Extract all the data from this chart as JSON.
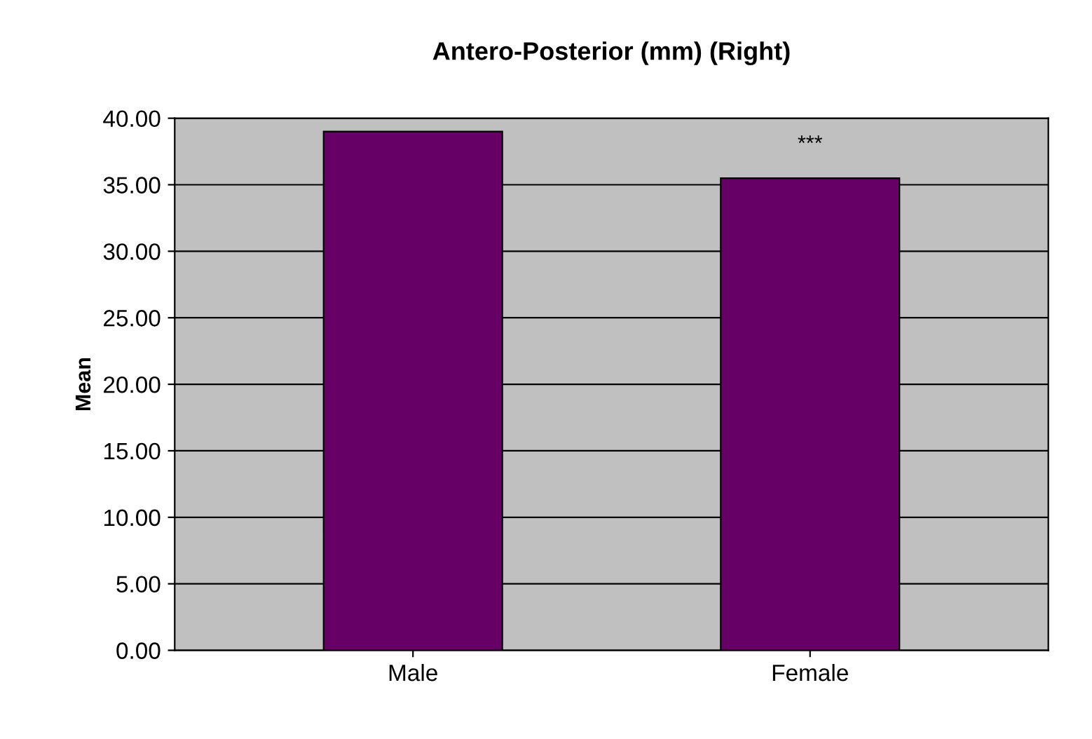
{
  "chart_data": {
    "type": "bar",
    "title": "Antero-Posterior (mm) (Right)",
    "ylabel": "Mean",
    "categories": [
      "Male",
      "Female"
    ],
    "values": [
      39.0,
      35.5
    ],
    "color": "#660066",
    "ylim": [
      0,
      40
    ],
    "yticks": [
      {
        "value": 0,
        "label": "0.00"
      },
      {
        "value": 5,
        "label": "5.00"
      },
      {
        "value": 10,
        "label": "10.00"
      },
      {
        "value": 15,
        "label": "15.00"
      },
      {
        "value": 20,
        "label": "20.00"
      },
      {
        "value": 25,
        "label": "25.00"
      },
      {
        "value": 30,
        "label": "30.00"
      },
      {
        "value": 35,
        "label": "35.00"
      },
      {
        "value": 40,
        "label": "40.00"
      }
    ],
    "grid": "y",
    "annotations": [
      {
        "text": "***",
        "x": "Female",
        "y": 35.5
      }
    ]
  }
}
